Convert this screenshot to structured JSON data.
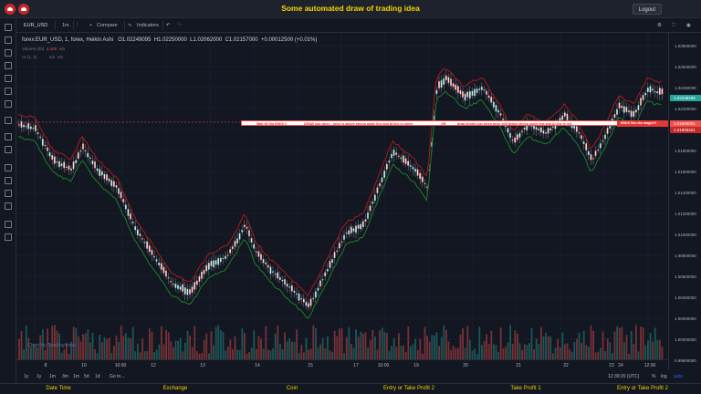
{
  "app": {
    "title": "Some automated draw of trading idea",
    "logout_label": "Logout",
    "colors": {
      "accent": "#f5d300",
      "bull": "#26a69a",
      "bear": "#ef5350",
      "background": "#131722"
    }
  },
  "toolbar": {
    "symbol": "EUR_USD",
    "interval": "1m",
    "compare_label": "Compare",
    "indicators_label": "Indicators"
  },
  "legend": {
    "main": "forex:EUR_USD, 1, forex, Heikin Ashi",
    "open": "O1.02249095",
    "high": "H1.02250000",
    "low": "L1.02062000",
    "close": "C1.02157000",
    "change": "+0.00012500 (+0.01%)",
    "volume_label": "Volume (20)",
    "volume_value": "4.428",
    "volume_na": "n/a",
    "ai_label": "AI (1, 1)",
    "ai_na1": "n/a",
    "ai_na2": "n/a"
  },
  "annotation": {
    "part1": "Wait till flip ENDS !!",
    "part2": "DRAW just when : price is above strong angle line and AI line is green",
    "part3": "OR",
    "part4": "draw shorts just when price still below strong angle line and AI line is red",
    "end_label": "ENDS Sim the magic!!!"
  },
  "price_axis": {
    "ticks": [
      "1.02800000",
      "1.02600000",
      "1.02400000",
      "1.02200000",
      "1.02000000",
      "1.01800000",
      "1.01600000",
      "1.01400000",
      "1.01200000",
      "1.01000000",
      "1.00800000",
      "1.00600000",
      "1.00400000",
      "1.00200000",
      "1.00000000",
      "0.99800000"
    ],
    "current_price": "1.02238299",
    "tag_price": "1.01906001",
    "tag_price2": "1.01906321"
  },
  "time_axis": {
    "ticks": [
      "8",
      "10",
      "10:00",
      "12",
      "13",
      "14",
      "15",
      "17",
      "10:00",
      "19",
      "20",
      "21",
      "22",
      "23",
      "24",
      "12:00"
    ]
  },
  "bottom_controls": {
    "ranges": [
      "1y",
      "1y",
      "1m",
      "3m",
      "1m",
      "5d",
      "1d"
    ],
    "goto_label": "Go to...",
    "clock": "12:39:20 (UTC)",
    "pct_label": "%",
    "log_label": "log",
    "auto_label": "auto"
  },
  "watermark": "Chart by TradingView",
  "columns": [
    "Date Time",
    "Exchange",
    "Coin",
    "Entry or Take Profit 2",
    "Take Profit 1",
    "Entry or Take Profit 2"
  ],
  "chart_data": {
    "type": "candlestick",
    "style": "Heikin Ashi",
    "y_range": [
      0.998,
      1.028
    ],
    "overlays": [
      "upper trailing line (red)",
      "lower trailing line (green)"
    ],
    "volume_panel": true,
    "grid": true
  }
}
